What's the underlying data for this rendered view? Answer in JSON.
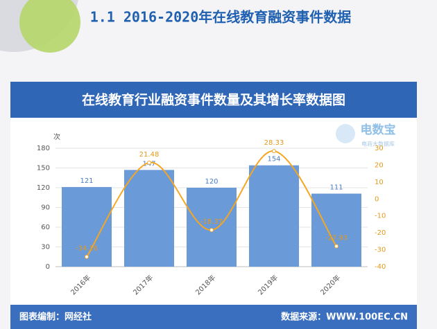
{
  "header": {
    "title": "1.1 2016-2020年在线教育融资事件数据"
  },
  "chart_data": {
    "type": "combo",
    "title": "在线教育行业融资事件数量及其增长率数据图",
    "ylabel": "次",
    "categories": [
      "2016年",
      "2017年",
      "2018年",
      "2019年",
      "2020年"
    ],
    "series": [
      {
        "type": "bar",
        "color": "#6b9ad9",
        "label_color": "#4a7cc4",
        "values": [
          121,
          147,
          120,
          154,
          111
        ]
      },
      {
        "type": "line",
        "axis": "y2",
        "color": "#f5a623",
        "label_color": "#e39a1c",
        "values": [
          -34.16,
          21.48,
          -18.37,
          28.33,
          -27.93
        ]
      }
    ],
    "ylim": [
      0,
      180
    ],
    "yticks": [
      0,
      30,
      60,
      90,
      120,
      150,
      180
    ],
    "y2lim": [
      -40,
      30
    ],
    "y2ticks": [
      -40,
      -30,
      -20,
      -10,
      0,
      10,
      20,
      30
    ],
    "grid": true
  },
  "watermark": {
    "name": "电数宝",
    "subtitle": "电商大数据库"
  },
  "footer": {
    "left": "图表编制：网经社",
    "right": "数据来源：WWW.100EC.CN"
  }
}
